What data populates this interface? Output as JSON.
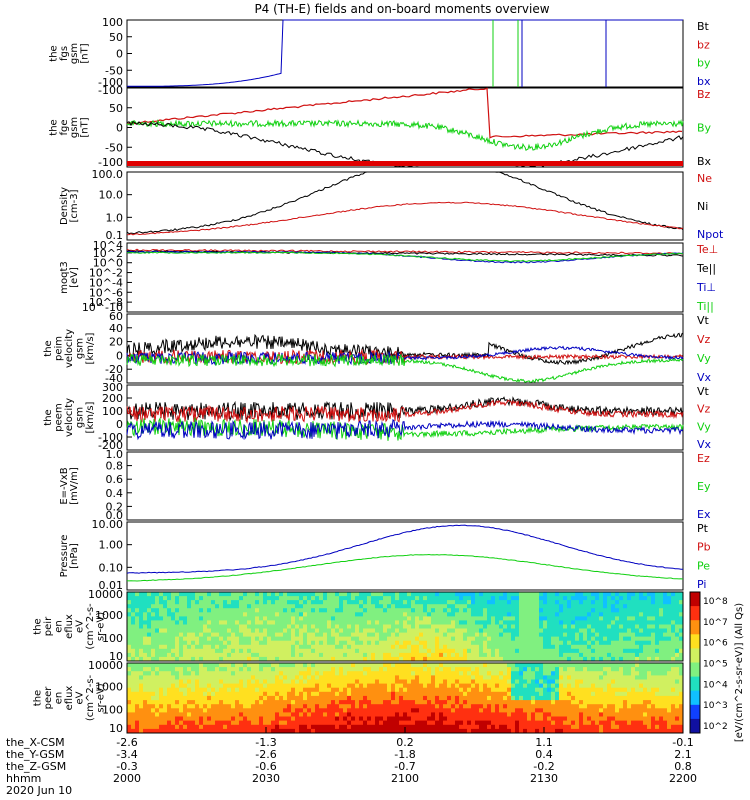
{
  "title": "P4 (TH-E) fields and on-board moments overview",
  "colors": {
    "black": "#000000",
    "red": "#d01010",
    "green": "#10d010",
    "blue": "#0000c0"
  },
  "chart_data": {
    "type": "line",
    "x_ticks": [
      "2000",
      "2030",
      "2100",
      "2130",
      "2200"
    ],
    "x_rows": [
      {
        "name": "the_X-CSM",
        "values": [
          "-2.6",
          "-1.3",
          "0.2",
          "1.1",
          "-0.1"
        ]
      },
      {
        "name": "the_Y-GSM",
        "values": [
          "-3.4",
          "-2.6",
          "-1.8",
          "0.4",
          "2.1"
        ]
      },
      {
        "name": "the_Z-GSM",
        "values": [
          "-0.3",
          "-0.6",
          "-0.7",
          "-0.2",
          "0.8"
        ]
      },
      {
        "name": "hhmm",
        "values": [
          "2000",
          "2030",
          "2100",
          "2130",
          "2200"
        ]
      }
    ],
    "date_label": "2020 Jun 10",
    "panels": [
      {
        "id": "fgs",
        "ylabel": [
          "the",
          "fgs",
          "gsm",
          "[nT]"
        ],
        "ticks": [
          "100",
          "50",
          "0",
          "-50",
          "-100"
        ],
        "legend": [
          {
            "text": "Bt",
            "color": "black"
          },
          {
            "text": "bz",
            "color": "red"
          },
          {
            "text": "by",
            "color": "green"
          },
          {
            "text": "bx",
            "color": "blue"
          }
        ]
      },
      {
        "id": "fge",
        "ylabel": [
          "the",
          "fge",
          "gsm",
          "[nT]"
        ],
        "ticks": [
          "-100",
          "50",
          "0",
          "-50",
          "-100"
        ],
        "legend": [
          {
            "text": "Bz",
            "color": "red"
          },
          {
            "text": "By",
            "color": "green"
          },
          {
            "text": "Bx",
            "color": "black"
          }
        ]
      },
      {
        "id": "density",
        "ylabel": [
          "Density",
          "[cm-3]"
        ],
        "ticks": [
          "100.0",
          "10.0",
          "1.0",
          "0.1"
        ],
        "scale": "log",
        "legend": [
          {
            "text": "Ne",
            "color": "red"
          },
          {
            "text": "Ni",
            "color": "black"
          },
          {
            "text": "Npot",
            "color": "blue"
          }
        ]
      },
      {
        "id": "temp",
        "ylabel": [
          "moqt3",
          "[eV]"
        ],
        "ticks": [
          "10^4",
          "10^2",
          "10^0",
          "10^-2",
          "10^-4",
          "10^-6",
          "10^-8",
          "10^-10"
        ],
        "scale": "log",
        "legend": [
          {
            "text": "Te⊥",
            "color": "red"
          },
          {
            "text": "Te||",
            "color": "black"
          },
          {
            "text": "Ti⊥",
            "color": "blue"
          },
          {
            "text": "Ti||",
            "color": "green"
          }
        ]
      },
      {
        "id": "veli",
        "ylabel": [
          "the",
          "peim",
          "velocity",
          "gsm",
          "[km/s]"
        ],
        "ticks": [
          "60",
          "40",
          "20",
          "0",
          "-20",
          "-40"
        ],
        "legend": [
          {
            "text": "Vt",
            "color": "black"
          },
          {
            "text": "Vz",
            "color": "red"
          },
          {
            "text": "Vy",
            "color": "green"
          },
          {
            "text": "Vx",
            "color": "blue"
          }
        ]
      },
      {
        "id": "vele",
        "ylabel": [
          "the",
          "peem",
          "velocity",
          "gsm",
          "[km/s]"
        ],
        "ticks": [
          "300",
          "200",
          "100",
          "0",
          "-100",
          "-200"
        ],
        "legend": [
          {
            "text": "Vt",
            "color": "black"
          },
          {
            "text": "Vz",
            "color": "red"
          },
          {
            "text": "Vy",
            "color": "green"
          },
          {
            "text": "Vx",
            "color": "blue"
          }
        ]
      },
      {
        "id": "efield",
        "ylabel": [
          "E=-VxB",
          "[mV/m]"
        ],
        "ticks": [
          "1.0",
          "0.8",
          "0.6",
          "0.4",
          "0.2",
          "0.0"
        ],
        "legend": [
          {
            "text": "Ez",
            "color": "red"
          },
          {
            "text": "Ey",
            "color": "green"
          },
          {
            "text": "Ex",
            "color": "blue"
          }
        ]
      },
      {
        "id": "pressure",
        "ylabel": [
          "Pressure",
          "[nPa]"
        ],
        "ticks": [
          "10.00",
          "1.00",
          "0.10",
          "0.01"
        ],
        "scale": "log",
        "legend": [
          {
            "text": "Pt",
            "color": "black"
          },
          {
            "text": "Pb",
            "color": "red"
          },
          {
            "text": "Pe",
            "color": "green"
          },
          {
            "text": "Pi",
            "color": "blue"
          }
        ]
      },
      {
        "id": "ion_spec",
        "ylabel": [
          "the",
          "peir",
          "en",
          "eflux",
          "eV",
          "(cm^2-s-",
          "sr-eV)"
        ],
        "ticks": [
          "10000",
          "1000",
          "100",
          "10"
        ],
        "scale": "log"
      },
      {
        "id": "elec_spec",
        "ylabel": [
          "the",
          "peer",
          "en",
          "eflux",
          "eV",
          "(cm^2-s-",
          "sr-eV)"
        ],
        "ticks": [
          "10000",
          "1000",
          "100",
          "10"
        ],
        "scale": "log"
      }
    ],
    "colorbar": {
      "ticks": [
        "10^8",
        "10^7",
        "10^6",
        "10^5",
        "10^4",
        "10^3",
        "10^2"
      ],
      "label": "[eV/(cm^2-s-sr-eV)] (All Qs)"
    }
  }
}
